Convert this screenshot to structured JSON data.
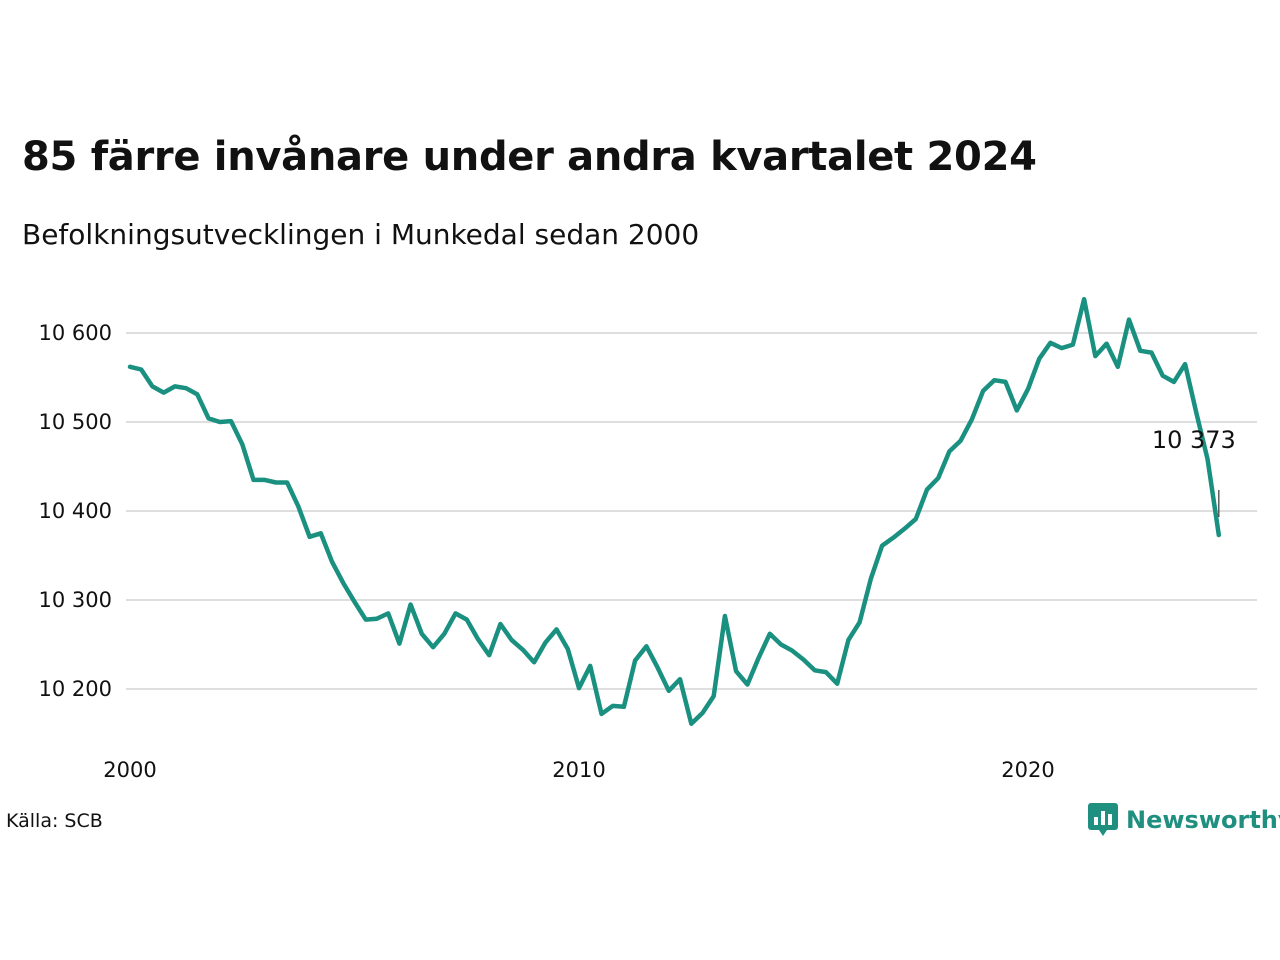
{
  "title": "85 färre invånare under andra kvartalet 2024",
  "subtitle": "Befolkningsutvecklingen i Munkedal sedan 2000",
  "source": "Källa: SCB",
  "brand": {
    "name": "Newsworthy",
    "icon": "newsworthy-logo-icon"
  },
  "colors": {
    "line": "#1a9080",
    "grid": "#dedede",
    "brand": "#1f8f80"
  },
  "chart_data": {
    "type": "line",
    "title": "85 färre invånare under andra kvartalet 2024",
    "subtitle": "Befolkningsutvecklingen i Munkedal sedan 2000",
    "xlabel": "",
    "ylabel": "",
    "x_ticks": [
      2000,
      2010,
      2020
    ],
    "y_ticks": [
      10200,
      10300,
      10400,
      10500,
      10600
    ],
    "y_tick_labels": [
      "10 200",
      "10 300",
      "10 400",
      "10 500",
      "10 600"
    ],
    "xlim": [
      2000.0,
      2025.7
    ],
    "ylim": [
      10140,
      10655
    ],
    "grid": true,
    "end_label": "10 373",
    "series": [
      {
        "x": [
          2000.0,
          2000.25,
          2000.5,
          2000.75,
          2001.0,
          2001.25,
          2001.5,
          2001.75,
          2002.0,
          2002.25,
          2002.5,
          2002.75,
          2003.0,
          2003.25,
          2003.5,
          2003.75,
          2004.0,
          2004.25,
          2004.5,
          2004.75,
          2005.0,
          2005.25,
          2005.5,
          2005.75,
          2006.0,
          2006.25,
          2006.5,
          2006.75,
          2007.0,
          2007.25,
          2007.5,
          2007.75,
          2008.0,
          2008.25,
          2008.5,
          2008.75,
          2009.0,
          2009.25,
          2009.5,
          2009.75,
          2010.0,
          2010.25,
          2010.5,
          2010.75,
          2011.0,
          2011.25,
          2011.5,
          2011.75,
          2012.0,
          2012.25,
          2012.5,
          2012.75,
          2013.0,
          2013.25,
          2013.5,
          2013.75,
          2014.0,
          2014.25,
          2014.5,
          2014.75,
          2015.0,
          2015.25,
          2015.5,
          2015.75,
          2016.0,
          2016.25,
          2016.5,
          2016.75,
          2017.0,
          2017.25,
          2017.5,
          2017.75,
          2018.0,
          2018.25,
          2018.5,
          2018.75,
          2019.0,
          2019.25,
          2019.5,
          2019.75,
          2020.0,
          2020.25,
          2020.5,
          2020.75,
          2021.0,
          2021.25,
          2021.5,
          2021.75,
          2022.0,
          2022.25,
          2022.5,
          2022.75,
          2023.0,
          2023.25,
          2023.5,
          2023.75,
          2024.0,
          2024.25
        ],
        "y": [
          10562,
          10559,
          10540,
          10533,
          10540,
          10538,
          10531,
          10504,
          10500,
          10501,
          10475,
          10435,
          10435,
          10432,
          10432,
          10405,
          10371,
          10375,
          10343,
          10319,
          10298,
          10278,
          10279,
          10285,
          10251,
          10295,
          10262,
          10247,
          10262,
          10285,
          10278,
          10256,
          10238,
          10273,
          10255,
          10244,
          10230,
          10252,
          10267,
          10245,
          10201,
          10226,
          10172,
          10181,
          10180,
          10232,
          10248,
          10224,
          10198,
          10211,
          10161,
          10173,
          10192,
          10282,
          10220,
          10205,
          10235,
          10262,
          10250,
          10243,
          10233,
          10221,
          10219,
          10206,
          10255,
          10275,
          10324,
          10361,
          10370,
          10380,
          10391,
          10424,
          10437,
          10467,
          10479,
          10503,
          10535,
          10547,
          10545,
          10513,
          10537,
          10571,
          10589,
          10583,
          10587,
          10638,
          10574,
          10588,
          10562,
          10615,
          10580,
          10578,
          10552,
          10545,
          10565,
          10510,
          10458,
          10373
        ]
      }
    ]
  }
}
